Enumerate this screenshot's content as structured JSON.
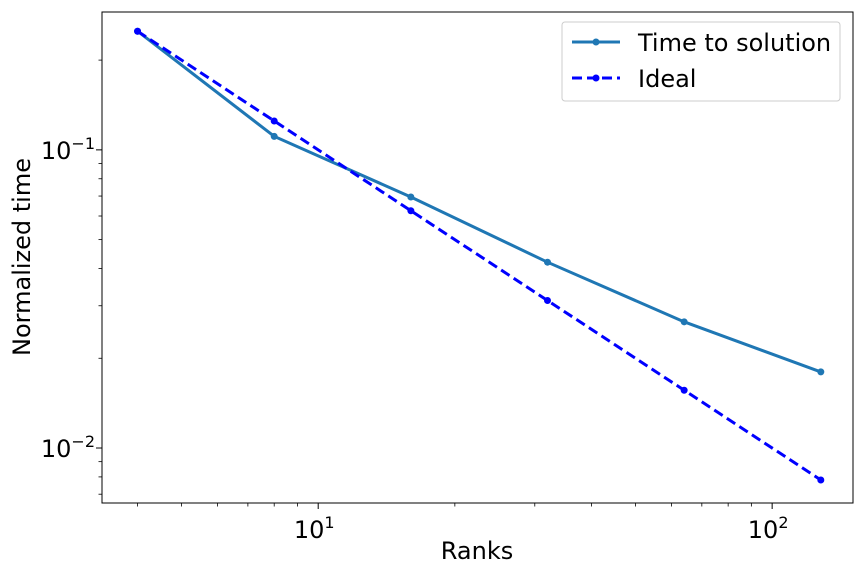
{
  "chart_data": {
    "type": "line",
    "title": "",
    "xlabel": "Ranks",
    "ylabel": "Normalized time",
    "xscale": "log",
    "yscale": "log",
    "xlim": [
      3.34,
      150.7
    ],
    "ylim": [
      0.00654,
      0.29
    ],
    "grid": false,
    "legend": "top-right",
    "x": [
      4,
      8,
      16,
      32,
      64,
      128
    ],
    "x_ticks": [
      {
        "value": 10,
        "base": "10",
        "exp": "1"
      },
      {
        "value": 100,
        "base": "10",
        "exp": "2"
      }
    ],
    "y_ticks": [
      {
        "value": 0.1,
        "base": "10",
        "exp": "−1"
      },
      {
        "value": 0.01,
        "base": "10",
        "exp": "−2"
      }
    ],
    "series": [
      {
        "name": "Time to solution",
        "values": [
          0.25,
          0.111,
          0.0695,
          0.042,
          0.0265,
          0.018
        ],
        "color": "#1f77b4",
        "style": "solid"
      },
      {
        "name": "Ideal",
        "values": [
          0.25,
          0.125,
          0.0625,
          0.03125,
          0.015625,
          0.0078125
        ],
        "color": "#0000ff",
        "style": "dashed"
      }
    ]
  }
}
